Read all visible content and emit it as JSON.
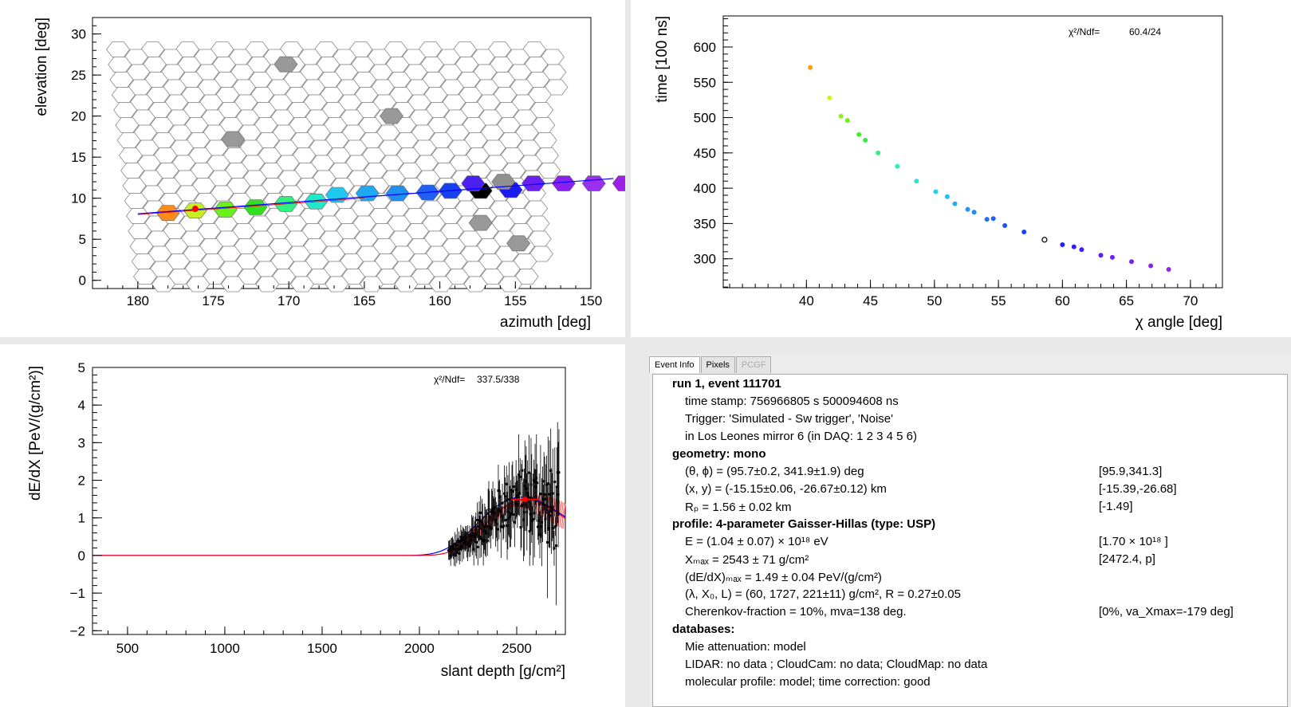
{
  "colors": {
    "fit_line": "#0000ff",
    "gh_fit": "#ff0000",
    "grid_stroke": "#888888",
    "bg": "#ffffff"
  },
  "camera": {
    "chart_data": {
      "type": "scatter",
      "xlabel": "azimuth  [deg]",
      "ylabel": "elevation  [deg]",
      "xlim": [
        183,
        150
      ],
      "ylim": [
        -1,
        32
      ],
      "x_ticks": [
        "180",
        "175",
        "170",
        "165",
        "160",
        "155",
        "150"
      ],
      "y_ticks": [
        "0",
        "5",
        "10",
        "15",
        "20",
        "25",
        "30"
      ],
      "active_pixels": [
        {
          "az": 178.0,
          "el": 8.2,
          "color": "#ff8c1a"
        },
        {
          "az": 176.2,
          "el": 8.5,
          "color": "#c8f020"
        },
        {
          "az": 174.2,
          "el": 8.6,
          "color": "#6af01a"
        },
        {
          "az": 172.2,
          "el": 8.9,
          "color": "#30e020"
        },
        {
          "az": 170.2,
          "el": 9.3,
          "color": "#30f080"
        },
        {
          "az": 168.2,
          "el": 9.6,
          "color": "#20e8c8"
        },
        {
          "az": 166.8,
          "el": 10.4,
          "color": "#20c8f0"
        },
        {
          "az": 164.8,
          "el": 10.6,
          "color": "#20a8f0"
        },
        {
          "az": 162.8,
          "el": 10.6,
          "color": "#2090f0"
        },
        {
          "az": 160.8,
          "el": 10.7,
          "color": "#2060f0"
        },
        {
          "az": 159.3,
          "el": 10.9,
          "color": "#1840f0"
        },
        {
          "az": 157.3,
          "el": 10.9,
          "color": "#000000"
        },
        {
          "az": 155.3,
          "el": 11.0,
          "color": "#1c1cf0"
        },
        {
          "az": 157.8,
          "el": 11.8,
          "color": "#4a20f0"
        },
        {
          "az": 153.8,
          "el": 11.8,
          "color": "#6a20f0"
        },
        {
          "az": 151.8,
          "el": 11.8,
          "color": "#8a20f0"
        },
        {
          "az": 149.8,
          "el": 11.8,
          "color": "#9a30f0"
        },
        {
          "az": 147.8,
          "el": 11.8,
          "color": "#9e20e8"
        },
        {
          "az": 155.8,
          "el": 12.0,
          "color": "#909090"
        }
      ],
      "noise_pixels": [
        {
          "az": 170.2,
          "el": 26.3
        },
        {
          "az": 163.2,
          "el": 20.0
        },
        {
          "az": 173.7,
          "el": 17.2
        },
        {
          "az": 157.3,
          "el": 7.0
        },
        {
          "az": 154.8,
          "el": 4.5
        }
      ],
      "track_line": {
        "az": [
          180,
          148.5
        ],
        "el": [
          8.1,
          12.4
        ]
      },
      "marker": {
        "az": 176.2,
        "el": 8.7
      }
    }
  },
  "timefit": {
    "chart_data": {
      "type": "scatter",
      "xlabel": "χ angle [deg]",
      "ylabel": "time [100 ns]",
      "xlim": [
        33.5,
        72.5
      ],
      "ylim": [
        259,
        644
      ],
      "x_ticks": [
        "40",
        "45",
        "50",
        "55",
        "60",
        "65",
        "70"
      ],
      "y_ticks": [
        "300",
        "350",
        "400",
        "450",
        "500",
        "550",
        "600"
      ],
      "chi2_label": "χ²/Ndf=",
      "chi2_value": "60.4/24",
      "points": [
        [
          40.3,
          571,
          "#ff9a1a"
        ],
        [
          41.8,
          528,
          "#d8f020"
        ],
        [
          42.7,
          502,
          "#8ef01a"
        ],
        [
          43.2,
          496,
          "#70f01a"
        ],
        [
          44.1,
          476,
          "#40f020"
        ],
        [
          44.6,
          468,
          "#30f040"
        ],
        [
          45.6,
          450,
          "#30f080"
        ],
        [
          47.1,
          431,
          "#30f0b0"
        ],
        [
          48.6,
          410,
          "#20e8d8"
        ],
        [
          50.1,
          395,
          "#20d0f0"
        ],
        [
          51.0,
          388,
          "#20c0f0"
        ],
        [
          51.6,
          378,
          "#20b0f0"
        ],
        [
          52.6,
          370,
          "#2098f0"
        ],
        [
          53.1,
          366,
          "#2088f0"
        ],
        [
          54.1,
          356,
          "#2070f0"
        ],
        [
          54.6,
          357,
          "#2060f0"
        ],
        [
          55.5,
          347,
          "#2050f0"
        ],
        [
          57.0,
          338,
          "#2040f0"
        ],
        [
          58.6,
          327,
          "#000000"
        ],
        [
          60.0,
          320,
          "#2020f0"
        ],
        [
          60.9,
          317,
          "#3020f0"
        ],
        [
          61.5,
          313,
          "#4020f0"
        ],
        [
          63.0,
          305,
          "#6020f0"
        ],
        [
          63.9,
          302,
          "#7020f0"
        ],
        [
          65.4,
          296,
          "#8020f0"
        ],
        [
          66.9,
          290,
          "#9020f0"
        ],
        [
          68.3,
          285,
          "#9a20f0"
        ]
      ]
    }
  },
  "profile": {
    "chart_data": {
      "type": "scatter",
      "xlabel": "slant depth [g/cm²]",
      "ylabel": "dE/dX [PeV/(g/cm²)]",
      "xlim": [
        320,
        2750
      ],
      "ylim": [
        -2.1,
        5.0
      ],
      "x_ticks": [
        "500",
        "1000",
        "1500",
        "2000",
        "2500"
      ],
      "y_ticks": [
        "−2",
        "−1",
        "0",
        "1",
        "2",
        "3",
        "4",
        "5"
      ],
      "chi2_label": "χ²/Ndf=",
      "chi2_value": "337.5/338",
      "data_range": [
        2150,
        2720
      ],
      "gh_fit": {
        "Xmax": 2543,
        "dEdXmax": 1.49
      },
      "xmax_marker": {
        "x": 2543,
        "y": 1.49,
        "xerr": 71
      }
    }
  },
  "tabs": {
    "event_info": "Event Info",
    "pixels": "Pixels",
    "pcgf": "PCGF"
  },
  "info": {
    "run": "run 1, event 111701",
    "timestamp": "time stamp: 756966805 s 500094608 ns",
    "trigger": "Trigger: 'Simulated - Sw trigger', 'Noise'",
    "site": "in Los Leones mirror 6 (in DAQ:  1 2 3 4 5 6)",
    "geometry": "geometry: mono",
    "theta_phi": "(θ, ϕ) = (95.7±0.2, 341.9±1.9) deg",
    "theta_phi_r": "[95.9,341.3]",
    "xy": "(x, y) = (-15.15±0.06, -26.67±0.12) km",
    "xy_r": "[-15.39,-26.68]",
    "rp": "Rₚ = 1.56 ± 0.02 km",
    "rp_r": "[-1.49]",
    "profile": "profile: 4-parameter Gaisser-Hillas (type: USP)",
    "energy": "E = (1.04 ± 0.07) × 10¹⁸ eV",
    "energy_r": "[1.70 × 10¹⁸ ]",
    "xmax": "Xₘₐₓ = 2543 ± 71 g/cm²",
    "xmax_r": "[2472.4, p]",
    "dedx": "(dE/dX)ₘₐₓ = 1.49 ± 0.04 PeV/(g/cm²)",
    "lambda": "(λ, X₀, L) = (60, 1727, 221±11) g/cm², R = 0.27±0.05",
    "cherenkov": "Cherenkov-fraction = 10%, mva=138 deg.",
    "cherenkov_r": "[0%, va_Xmax=-179 deg]",
    "databases": "databases:",
    "mie": "Mie attenuation: model",
    "lidar": "LIDAR: no data ; CloudCam: no data; CloudMap: no data",
    "molecular": "molecular profile: model; time correction: good"
  }
}
